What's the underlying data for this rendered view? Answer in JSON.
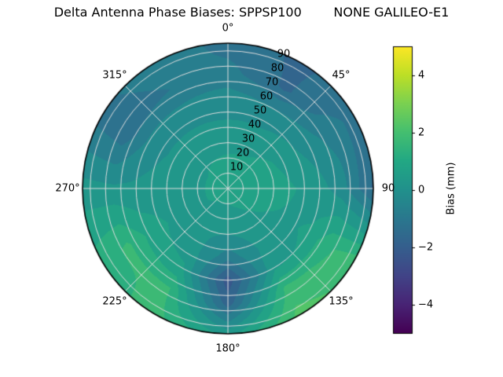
{
  "chart_data": {
    "type": "heatmap",
    "projection": "polar",
    "title": "Delta Antenna Phase Biases: SPPSP100        NONE GALILEO-E1",
    "azimuth_tick_labels": [
      "0°",
      "45°",
      "90",
      "135°",
      "180°",
      "225°",
      "270°",
      "315°"
    ],
    "azimuth_tick_deg": [
      0,
      45,
      90,
      135,
      180,
      225,
      270,
      315
    ],
    "radial_tick_labels": [
      "10",
      "20",
      "30",
      "40",
      "50",
      "60",
      "70",
      "80",
      "90"
    ],
    "radial_tick_values": [
      10,
      20,
      30,
      40,
      50,
      60,
      70,
      80,
      90
    ],
    "radial_max": 95,
    "radial_label_angle_deg": 22.5,
    "contour_level_step_mm": 0.5,
    "grid_color": "#dedede",
    "outline_color": "#000000",
    "colorbar": {
      "label": "Bias (mm)",
      "tick_labels": [
        "−4",
        "−2",
        "0",
        "2",
        "4"
      ],
      "tick_values": [
        -4,
        -2,
        0,
        2,
        4
      ],
      "vmin": -5,
      "vmax": 5,
      "colormap": "viridis",
      "colormap_stops": [
        [
          0.0,
          "#440154"
        ],
        [
          0.1,
          "#482475"
        ],
        [
          0.2,
          "#414487"
        ],
        [
          0.3,
          "#355f8d"
        ],
        [
          0.4,
          "#2a788e"
        ],
        [
          0.5,
          "#21918c"
        ],
        [
          0.6,
          "#22a884"
        ],
        [
          0.7,
          "#44bf70"
        ],
        [
          0.8,
          "#7ad151"
        ],
        [
          0.9,
          "#bddf26"
        ],
        [
          1.0,
          "#fde725"
        ]
      ]
    },
    "grid": {
      "azimuth_deg": [
        0,
        30,
        60,
        90,
        120,
        150,
        180,
        210,
        240,
        270,
        300,
        330
      ],
      "radius": [
        0,
        15,
        30,
        45,
        60,
        75,
        95
      ],
      "bias_mm": [
        [
          0.7,
          0.7,
          0.3,
          0.0,
          -0.3,
          -0.8,
          -1.2
        ],
        [
          0.7,
          0.8,
          0.3,
          0.0,
          -0.5,
          -1.6,
          -1.6
        ],
        [
          0.7,
          0.9,
          0.6,
          0.2,
          -0.3,
          -0.7,
          -1.2
        ],
        [
          0.7,
          0.9,
          0.7,
          0.5,
          0.2,
          -0.3,
          -1.6
        ],
        [
          0.7,
          0.7,
          0.5,
          0.4,
          0.6,
          1.4,
          1.8
        ],
        [
          0.7,
          0.5,
          0.2,
          0.1,
          0.4,
          1.6,
          2.2
        ],
        [
          0.7,
          0.4,
          0.0,
          -0.8,
          -2.3,
          -1.8,
          0.3
        ],
        [
          0.7,
          0.4,
          0.1,
          0.2,
          0.6,
          1.5,
          1.7
        ],
        [
          0.7,
          0.5,
          0.4,
          0.5,
          0.9,
          1.6,
          1.2
        ],
        [
          0.7,
          0.5,
          0.4,
          0.2,
          0.1,
          0.1,
          0.2
        ],
        [
          0.7,
          0.5,
          0.2,
          0.0,
          -0.4,
          -1.4,
          -1.2
        ],
        [
          0.7,
          0.6,
          0.3,
          0.0,
          -0.4,
          -1.0,
          -0.6
        ]
      ]
    }
  }
}
